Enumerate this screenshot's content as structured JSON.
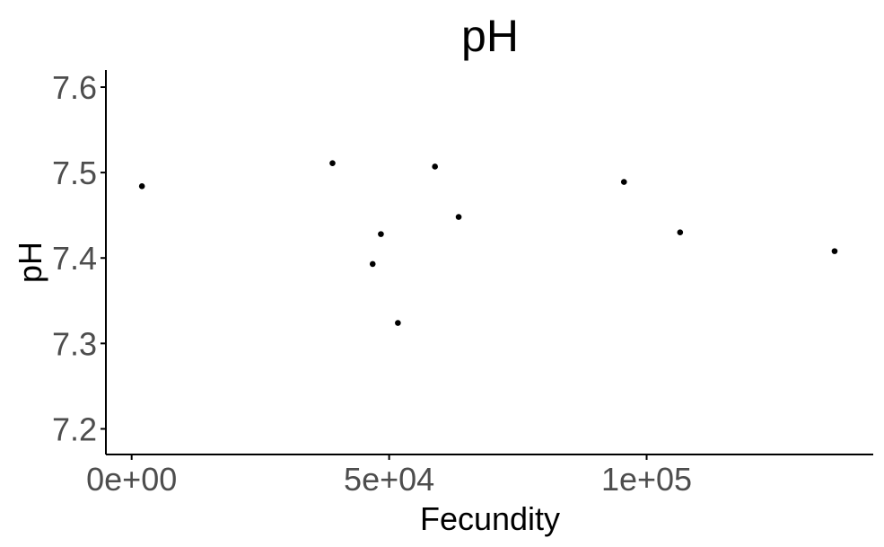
{
  "chart_data": {
    "type": "scatter",
    "title": "pH",
    "xlabel": "Fecundity",
    "ylabel": "pH",
    "xlim": [
      -5000,
      144000
    ],
    "ylim": [
      7.17,
      7.62
    ],
    "xticks": [
      0,
      50000,
      100000
    ],
    "xtick_labels": [
      "0e+00",
      "5e+04",
      "1e+05"
    ],
    "yticks": [
      7.2,
      7.3,
      7.4,
      7.5,
      7.6
    ],
    "ytick_labels": [
      "7.2",
      "7.3",
      "7.4",
      "7.5",
      "7.6"
    ],
    "grid": false,
    "legend": "none",
    "point_color": "#000000",
    "points": [
      {
        "x": 2000,
        "y": 7.484
      },
      {
        "x": 39000,
        "y": 7.511
      },
      {
        "x": 46800,
        "y": 7.393
      },
      {
        "x": 48400,
        "y": 7.428
      },
      {
        "x": 51700,
        "y": 7.324
      },
      {
        "x": 58900,
        "y": 7.507
      },
      {
        "x": 63500,
        "y": 7.448
      },
      {
        "x": 95600,
        "y": 7.489
      },
      {
        "x": 106500,
        "y": 7.43
      },
      {
        "x": 136500,
        "y": 7.408
      }
    ]
  }
}
